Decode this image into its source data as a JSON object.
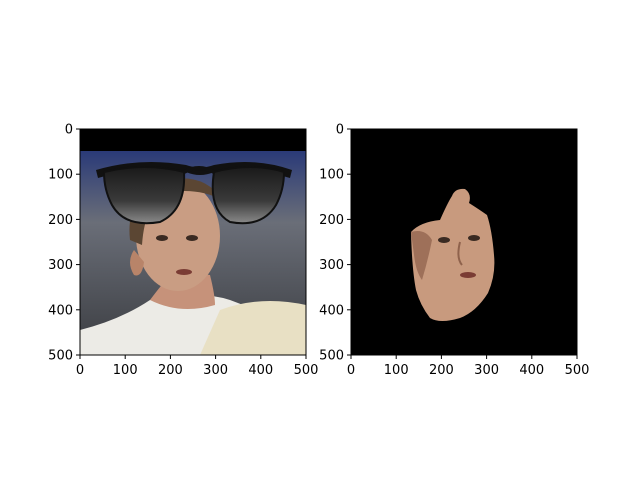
{
  "chart_data": [
    {
      "type": "image",
      "title": "",
      "content": "portrait photo of a man wearing black sunglasses overlay",
      "xlim": [
        0,
        500
      ],
      "ylim": [
        500,
        0
      ],
      "xticks": [
        0,
        100,
        200,
        300,
        400,
        500
      ],
      "yticks": [
        0,
        100,
        200,
        300,
        400,
        500
      ],
      "xticklabels": [
        "0",
        "100",
        "200",
        "300",
        "400",
        "500"
      ],
      "yticklabels": [
        "0",
        "100",
        "200",
        "300",
        "400",
        "500"
      ]
    },
    {
      "type": "image",
      "title": "",
      "content": "segmented face region on black background",
      "xlim": [
        0,
        500
      ],
      "ylim": [
        500,
        0
      ],
      "xticks": [
        0,
        100,
        200,
        300,
        400,
        500
      ],
      "yticks": [
        0,
        100,
        200,
        300,
        400,
        500
      ],
      "xticklabels": [
        "0",
        "100",
        "200",
        "300",
        "400",
        "500"
      ],
      "yticklabels": [
        "0",
        "100",
        "200",
        "300",
        "400",
        "500"
      ]
    }
  ],
  "colors": {
    "background": "#ffffff",
    "black": "#000000",
    "skin": "#c89a7e",
    "skin_shadow": "#9c6f58",
    "hair": "#5a4634",
    "photo_bg": "#4a4d55",
    "shirt": "#eeeae2",
    "sweater": "#e9e2c8",
    "lens": "#222222"
  }
}
